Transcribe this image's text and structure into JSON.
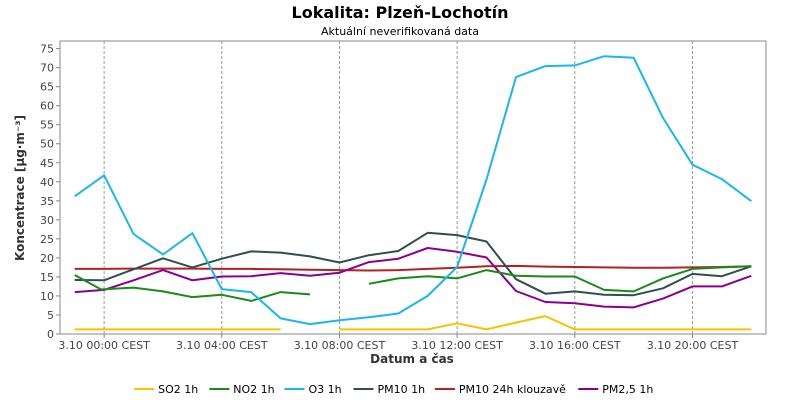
{
  "chart_data": {
    "type": "line",
    "title": "Lokalita: Plzeň-Lochotín",
    "subtitle": "Aktuální neverifikovaná data",
    "xlabel": "Datum a čas",
    "ylabel": "Koncentrace [µg·m⁻³]",
    "ylim": [
      0,
      77
    ],
    "yticks": [
      0,
      5,
      10,
      15,
      20,
      25,
      30,
      35,
      40,
      45,
      50,
      55,
      60,
      65,
      70,
      75
    ],
    "xlim": [
      -1.5,
      22.5
    ],
    "xticks": [
      {
        "x": 0,
        "label": "3.10 00:00 CEST"
      },
      {
        "x": 4,
        "label": "3.10 04:00 CEST"
      },
      {
        "x": 8,
        "label": "3.10 08:00 CEST"
      },
      {
        "x": 12,
        "label": "3.10 12:00 CEST"
      },
      {
        "x": 16,
        "label": "3.10 16:00 CEST"
      },
      {
        "x": 20,
        "label": "3.10 20:00 CEST"
      }
    ],
    "grid": true,
    "legend_position": "bottom",
    "series": [
      {
        "name": "SO2 1h",
        "color": "#f2c500",
        "points": [
          [
            -1,
            1.2
          ],
          [
            0,
            1.2
          ],
          [
            1,
            1.2
          ],
          [
            2,
            1.2
          ],
          [
            3,
            1.2
          ],
          [
            4,
            1.2
          ],
          [
            5,
            1.2
          ],
          [
            6,
            1.2
          ],
          [
            null,
            null
          ],
          [
            8,
            1.2
          ],
          [
            9,
            1.2
          ],
          [
            10,
            1.2
          ],
          [
            11,
            1.2
          ],
          [
            12,
            2.8
          ],
          [
            13,
            1.2
          ],
          [
            14,
            3.0
          ],
          [
            15,
            4.7
          ],
          [
            16,
            1.2
          ],
          [
            17,
            1.2
          ],
          [
            18,
            1.2
          ],
          [
            19,
            1.2
          ],
          [
            20,
            1.2
          ],
          [
            21,
            1.2
          ],
          [
            22,
            1.2
          ]
        ]
      },
      {
        "name": "NO2 1h",
        "color": "#1a8a1a",
        "points": [
          [
            -1,
            15.5
          ],
          [
            -0.1,
            11.7
          ],
          [
            1,
            12.2
          ],
          [
            2,
            11.2
          ],
          [
            3,
            9.7
          ],
          [
            4,
            10.3
          ],
          [
            5,
            8.7
          ],
          [
            6,
            11.0
          ],
          [
            7,
            10.4
          ],
          [
            null,
            null
          ],
          [
            9,
            13.2
          ],
          [
            10,
            14.6
          ],
          [
            11,
            15.2
          ],
          [
            12,
            14.6
          ],
          [
            13,
            16.8
          ],
          [
            14,
            15.3
          ],
          [
            15,
            15.1
          ],
          [
            16,
            15.1
          ],
          [
            17,
            11.6
          ],
          [
            18,
            11.2
          ],
          [
            19,
            14.6
          ],
          [
            20,
            17.1
          ],
          [
            21,
            17.5
          ],
          [
            22,
            17.8
          ]
        ]
      },
      {
        "name": "O3 1h",
        "color": "#1ab7ea",
        "points": [
          [
            -1,
            36.2
          ],
          [
            0,
            41.7
          ],
          [
            1,
            26.3
          ],
          [
            2,
            20.9
          ],
          [
            3,
            26.5
          ],
          [
            4,
            11.8
          ],
          [
            5,
            11.0
          ],
          [
            6,
            4.1
          ],
          [
            7,
            2.6
          ],
          [
            8,
            3.6
          ],
          [
            9,
            4.4
          ],
          [
            10,
            5.4
          ],
          [
            11,
            10.0
          ],
          [
            12,
            17.6
          ],
          [
            13,
            40.6
          ],
          [
            14,
            67.5
          ],
          [
            15,
            70.4
          ],
          [
            16,
            70.6
          ],
          [
            17,
            73.0
          ],
          [
            18,
            72.6
          ],
          [
            19,
            56.8
          ],
          [
            20,
            44.5
          ],
          [
            21,
            40.7
          ],
          [
            22,
            34.9
          ]
        ]
      },
      {
        "name": "PM10 1h",
        "color": "#2f4f4f",
        "points": [
          [
            -1,
            14.2
          ],
          [
            0,
            14.1
          ],
          [
            1,
            17.0
          ],
          [
            2,
            19.9
          ],
          [
            3,
            17.5
          ],
          [
            4,
            19.8
          ],
          [
            5,
            21.7
          ],
          [
            6,
            21.4
          ],
          [
            7,
            20.4
          ],
          [
            8,
            18.8
          ],
          [
            9,
            20.7
          ],
          [
            10,
            21.8
          ],
          [
            11,
            26.6
          ],
          [
            12,
            26.0
          ],
          [
            13,
            24.3
          ],
          [
            14,
            14.4
          ],
          [
            15,
            10.6
          ],
          [
            16,
            11.2
          ],
          [
            17,
            10.3
          ],
          [
            18,
            10.2
          ],
          [
            19,
            12.0
          ],
          [
            20,
            15.8
          ],
          [
            21,
            15.2
          ],
          [
            22,
            17.8
          ]
        ]
      },
      {
        "name": "PM10 24h klouzavě",
        "color": "#b22222",
        "points": [
          [
            -1,
            17.1
          ],
          [
            0,
            17.1
          ],
          [
            1,
            17.2
          ],
          [
            2,
            17.2
          ],
          [
            3,
            17.2
          ],
          [
            4,
            17.1
          ],
          [
            5,
            17.1
          ],
          [
            6,
            17.0
          ],
          [
            7,
            16.9
          ],
          [
            8,
            16.8
          ],
          [
            9,
            16.7
          ],
          [
            10,
            16.8
          ],
          [
            11,
            17.1
          ],
          [
            12,
            17.4
          ],
          [
            13,
            17.8
          ],
          [
            14,
            17.9
          ],
          [
            15,
            17.7
          ],
          [
            16,
            17.6
          ],
          [
            17,
            17.5
          ],
          [
            18,
            17.4
          ],
          [
            19,
            17.4
          ],
          [
            20,
            17.5
          ],
          [
            21,
            17.6
          ],
          [
            22,
            17.8
          ]
        ]
      },
      {
        "name": "PM2,5 1h",
        "color": "#8b008b",
        "points": [
          [
            -1,
            11.0
          ],
          [
            0,
            11.6
          ],
          [
            1,
            14.1
          ],
          [
            2,
            16.8
          ],
          [
            3,
            14.1
          ],
          [
            4,
            15.1
          ],
          [
            5,
            15.2
          ],
          [
            6,
            16.0
          ],
          [
            7,
            15.3
          ],
          [
            8,
            16.1
          ],
          [
            9,
            18.9
          ],
          [
            10,
            19.8
          ],
          [
            11,
            22.6
          ],
          [
            12,
            21.6
          ],
          [
            13,
            20.1
          ],
          [
            14,
            11.3
          ],
          [
            15,
            8.4
          ],
          [
            16,
            8.1
          ],
          [
            17,
            7.2
          ],
          [
            18,
            7.0
          ],
          [
            19,
            9.3
          ],
          [
            20,
            12.5
          ],
          [
            21,
            12.5
          ],
          [
            22,
            15.3
          ]
        ]
      }
    ]
  }
}
